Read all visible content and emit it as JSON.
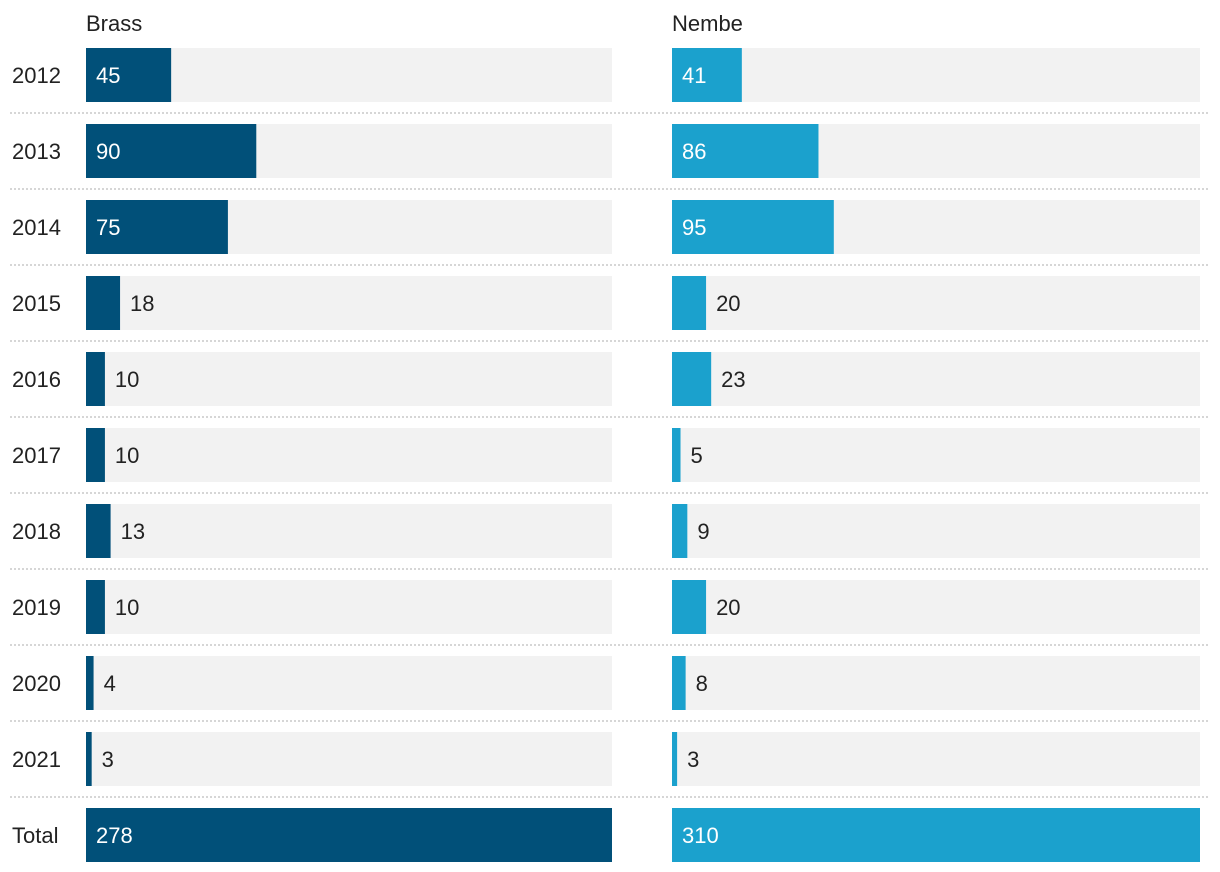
{
  "chart_data": {
    "type": "bar",
    "orientation": "horizontal",
    "layout": "small-multiples",
    "categories": [
      "2012",
      "2013",
      "2014",
      "2015",
      "2016",
      "2017",
      "2018",
      "2019",
      "2020",
      "2021",
      "Total"
    ],
    "series": [
      {
        "name": "Brass",
        "color": "#015079",
        "values": [
          45,
          90,
          75,
          18,
          10,
          10,
          13,
          10,
          4,
          3,
          278
        ],
        "scale_max": 278
      },
      {
        "name": "Nembe",
        "color": "#1ba1cd",
        "values": [
          41,
          86,
          95,
          20,
          23,
          5,
          9,
          20,
          8,
          3,
          310
        ],
        "scale_max": 310
      }
    ],
    "label_inside_threshold": 40,
    "colors": {
      "track": "#f2f2f2",
      "divider": "#c8c8c8",
      "text": "#222222",
      "label_inside": "#ffffff"
    }
  }
}
